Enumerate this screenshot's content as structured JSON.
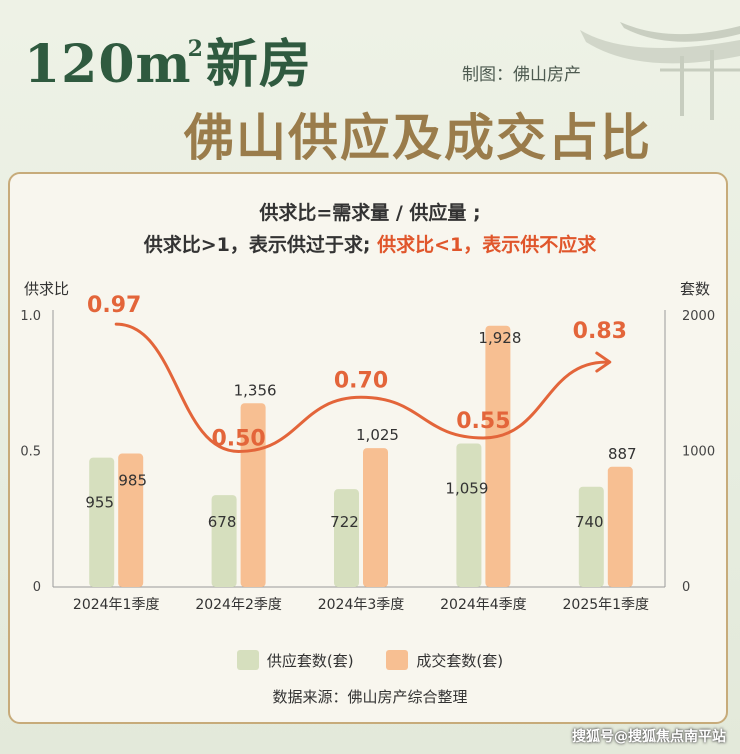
{
  "header": {
    "title_line1_pre": "120m",
    "title_line1_sup": "2",
    "title_line1_post": "新房",
    "title_line2": "佛山供应及成交占比",
    "maker": "制图：佛山房产"
  },
  "definition": {
    "line1": "供求比=需求量 / 供应量 ;",
    "line2_normal": "供求比>1，表示供过于求; ",
    "line2_highlight": "供求比<1，表示供不应求"
  },
  "chart_data": {
    "type": "bar",
    "categories": [
      "2024年1季度",
      "2024年2季度",
      "2024年3季度",
      "2024年4季度",
      "2025年1季度"
    ],
    "series": [
      {
        "name": "供应套数(套)",
        "values": [
          955,
          678,
          722,
          1059,
          740
        ],
        "color": "#d6dfbe"
      },
      {
        "name": "成交套数(套)",
        "values": [
          985,
          1356,
          1025,
          1928,
          887
        ],
        "color": "#f7bf92"
      }
    ],
    "line_series": {
      "values": [
        0.97,
        0.5,
        0.7,
        0.55,
        0.83
      ],
      "color": "#e3653a"
    },
    "y_left": {
      "label": "供求比",
      "ticks": [
        "1.0",
        "0.5",
        "0"
      ],
      "range": [
        0,
        1.0
      ]
    },
    "y_right": {
      "label": "套数",
      "ticks": [
        "2000",
        "1000",
        "0"
      ],
      "range": [
        0,
        2000
      ]
    },
    "value_labels_bar1": [
      "955",
      "678",
      "722",
      "1,059",
      "740"
    ],
    "value_labels_bar2": [
      "985",
      "1,356",
      "1,025",
      "1,928",
      "887"
    ],
    "line_labels": [
      "0.97",
      "0.50",
      "0.70",
      "0.55",
      "0.83"
    ],
    "legend_position": "bottom"
  },
  "source": "数据来源：佛山房产综合整理",
  "watermark": "搜狐号@搜狐焦点南平站"
}
